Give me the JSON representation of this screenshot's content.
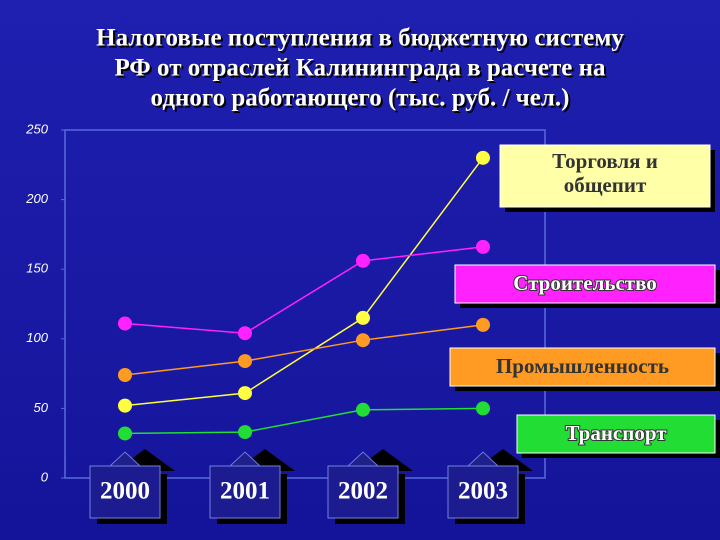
{
  "chart_data": {
    "type": "line",
    "title": [
      "Налоговые поступления в бюджетную систему",
      "РФ от отраслей Калининграда в расчете на",
      "одного работающего (тыс. руб. / чел.)"
    ],
    "categories": [
      "2000",
      "2001",
      "2002",
      "2003"
    ],
    "series": [
      {
        "name": "Торговля и общепит",
        "color": "#ffff40",
        "values": [
          52,
          61,
          115,
          230
        ]
      },
      {
        "name": "Строительство",
        "color": "#ff22ff",
        "values": [
          111,
          104,
          156,
          166
        ]
      },
      {
        "name": "Промышленность",
        "color": "#ff9a22",
        "values": [
          74,
          84,
          99,
          110
        ]
      },
      {
        "name": "Транспорт",
        "color": "#22dd33",
        "values": [
          32,
          33,
          49,
          50
        ]
      }
    ],
    "ylim": [
      0,
      250
    ],
    "yticks": [
      0,
      50,
      100,
      150,
      200,
      250
    ],
    "grid": false
  }
}
